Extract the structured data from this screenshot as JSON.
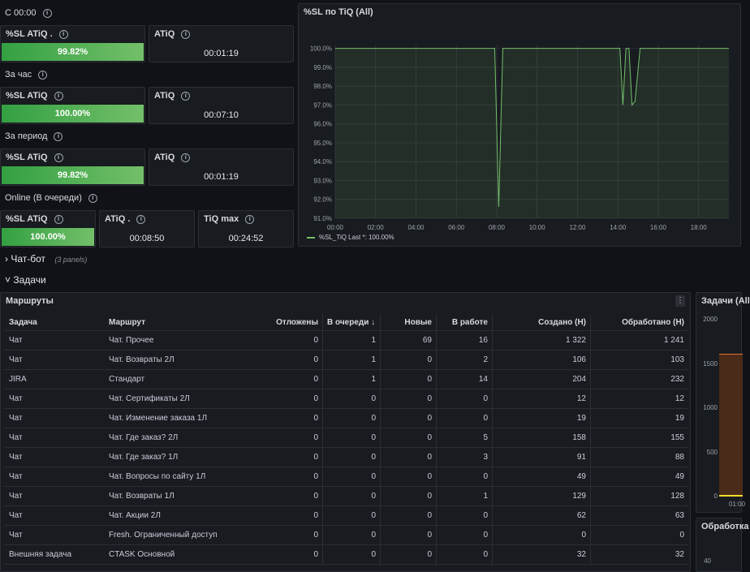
{
  "stats": {
    "s0": {
      "title": "С 00:00"
    },
    "g1": {
      "sl_title": "%SL ATiQ .",
      "sl_value": "99.82%",
      "atiq_title": "ATiQ",
      "atiq_value": "00:01:19"
    },
    "s1": {
      "title": "За час"
    },
    "g2": {
      "sl_title": "%SL ATiQ",
      "sl_value": "100.00%",
      "atiq_title": "ATiQ",
      "atiq_value": "00:07:10"
    },
    "s2": {
      "title": "За период"
    },
    "g3": {
      "sl_title": "%SL ATiQ",
      "sl_value": "99.82%",
      "atiq_title": "ATiQ",
      "atiq_value": "00:01:19"
    },
    "s3": {
      "title": "Online (В очереди)"
    },
    "g4": {
      "sl_title": "%SL ATiQ",
      "sl_value": "100.00%",
      "atiq_title": "ATiQ .",
      "atiq_value": "00:08:50",
      "tiq_title": "TiQ max",
      "tiq_value": "00:24:52"
    }
  },
  "info_glyph": "i",
  "chart_panel": {
    "title": "%SL по TiQ (All)",
    "legend_text": "%SL_TiQ  Last *: 100.00%"
  },
  "chart_data": {
    "type": "line",
    "title": "%SL по TiQ (All)",
    "ylim": [
      91,
      100.2
    ],
    "yticks": [
      100,
      99,
      98,
      97,
      96,
      95,
      94,
      93,
      92,
      91
    ],
    "ytick_labels": [
      "100.0%",
      "99.0%",
      "98.0%",
      "97.0%",
      "96.0%",
      "95.0%",
      "94.0%",
      "93.0%",
      "92.0%",
      "91.0%"
    ],
    "xlim": [
      0,
      19.5
    ],
    "xticks": [
      0,
      2,
      4,
      6,
      8,
      10,
      12,
      14,
      16,
      18
    ],
    "xtick_labels": [
      "00:00",
      "02:00",
      "04:00",
      "06:00",
      "08:00",
      "10:00",
      "12:00",
      "14:00",
      "16:00",
      "18:00"
    ],
    "grid": true,
    "legend": "bottom-left",
    "series": [
      {
        "name": "%SL_TiQ",
        "color": "#73bf69",
        "x": [
          0,
          7.9,
          8.1,
          8.3,
          14.1,
          14.25,
          14.4,
          14.55,
          14.7,
          14.85,
          15.1,
          15.3,
          19.5
        ],
        "y": [
          100,
          100,
          91.6,
          100,
          100,
          97.0,
          100,
          100,
          97.0,
          97.2,
          100,
          100,
          100
        ]
      }
    ]
  },
  "sections": {
    "chatbot": {
      "arrow": "›",
      "label": "Чат-бот",
      "sub": "(3 panels)"
    },
    "tasks": {
      "arrow": "˅",
      "label": "Задачи"
    }
  },
  "routes_panel": {
    "title": "Маршруты",
    "menu": "⋮",
    "columns": [
      "Задача",
      "Маршрут",
      "Отложены",
      "В очереди",
      "Новые",
      "В работе",
      "Создано (Н)",
      "Обработано (Н)"
    ],
    "sort_indicator": "↓",
    "rows": [
      [
        "Чат",
        "Чат. Прочее",
        "0",
        "1",
        "69",
        "16",
        "1 322",
        "1 241"
      ],
      [
        "Чат",
        "Чат. Возвраты 2Л",
        "0",
        "1",
        "0",
        "2",
        "106",
        "103"
      ],
      [
        "JIRA",
        "Стандарт",
        "0",
        "1",
        "0",
        "14",
        "204",
        "232"
      ],
      [
        "Чат",
        "Чат. Сертификаты 2Л",
        "0",
        "0",
        "0",
        "0",
        "12",
        "12"
      ],
      [
        "Чат",
        "Чат. Изменение заказа 1Л",
        "0",
        "0",
        "0",
        "0",
        "19",
        "19"
      ],
      [
        "Чат",
        "Чат. Где заказ? 2Л",
        "0",
        "0",
        "0",
        "5",
        "158",
        "155"
      ],
      [
        "Чат",
        "Чат. Где заказ? 1Л",
        "0",
        "0",
        "0",
        "3",
        "91",
        "88"
      ],
      [
        "Чат",
        "Чат. Вопросы по сайту 1Л",
        "0",
        "0",
        "0",
        "0",
        "49",
        "49"
      ],
      [
        "Чат",
        "Чат. Возвраты 1Л",
        "0",
        "0",
        "0",
        "1",
        "129",
        "128"
      ],
      [
        "Чат",
        "Чат. Акции 2Л",
        "0",
        "0",
        "0",
        "0",
        "62",
        "63"
      ],
      [
        "Чат",
        "Fresh. Ограниченный доступ",
        "0",
        "0",
        "0",
        "0",
        "0",
        "0"
      ],
      [
        "Внешняя задача",
        "CTASK Основной",
        "0",
        "0",
        "0",
        "0",
        "32",
        "32"
      ]
    ]
  },
  "side_panel_1": {
    "title": "Задачи (All",
    "yticks": [
      "2000",
      "1500",
      "1000",
      "500",
      "0"
    ],
    "xtick": "01:00"
  },
  "side_panel_2": {
    "title": "Обработка",
    "ytick": "40"
  }
}
